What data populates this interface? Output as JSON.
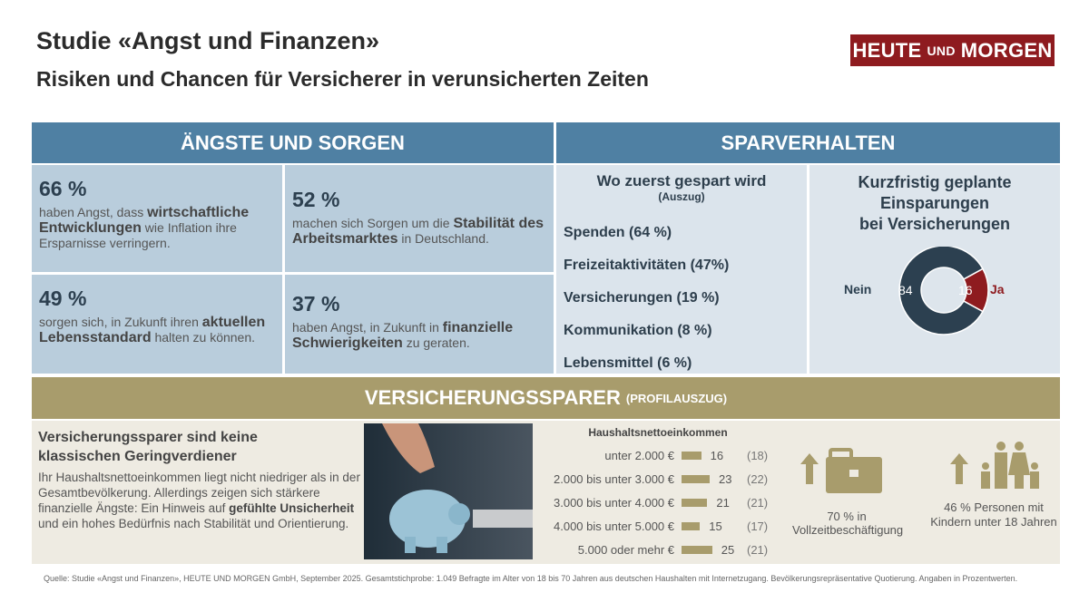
{
  "header": {
    "title": "Studie «Angst und Finanzen»",
    "subtitle": "Risiken und Chancen für Versicherer in verunsicherten Zeiten",
    "logo_main1": "HEUTE",
    "logo_small": "UND",
    "logo_main2": "MORGEN",
    "logo_color": "#8e1b1f"
  },
  "aengste": {
    "heading": "ÄNGSTE UND SORGEN",
    "cells": [
      {
        "pct": "66 %",
        "pre": "haben Angst, dass ",
        "bold": "wirtschaftliche Entwicklungen",
        "post": " wie Inflation ihre Ersparnisse verringern."
      },
      {
        "pct": "52 %",
        "pre": "machen sich Sorgen um die ",
        "bold": "Stabilität des Arbeitsmarktes",
        "post": " in Deutschland."
      },
      {
        "pct": "49 %",
        "pre": "sorgen sich, in Zukunft ihren ",
        "bold": "aktuellen Lebensstandard",
        "post": " halten zu können."
      },
      {
        "pct": "37 %",
        "pre": "haben Angst, in Zukunft in ",
        "bold": "finanzielle Schwierigkeiten",
        "post": " zu geraten."
      }
    ]
  },
  "spar": {
    "heading": "SPARVERHALTEN",
    "left_title": "Wo zuerst gespart wird",
    "left_sub": "(Auszug)",
    "items": [
      "Spenden (64 %)",
      "Freizeitaktivitäten (47%)",
      "Versicherungen (19 %)",
      "Kommunikation (8 %)",
      "Lebensmittel (6 %)"
    ],
    "right_title": [
      "Kurzfristig geplante",
      "Einsparungen",
      "bei Versicherungen"
    ],
    "donut": {
      "nein_label": "Nein",
      "nein_value": 84,
      "ja_label": "Ja",
      "ja_value": 16,
      "nein_color": "#2c4050",
      "ja_color": "#8e1b1f"
    }
  },
  "profil": {
    "heading": "VERSICHERUNGSSPARER",
    "heading_small": "(PROFILAUSZUG)",
    "lead": "Versicherungssparer sind keine klassischen Geringverdiener",
    "text_pre": "Ihr Haushaltsnettoeinkommen liegt nicht niedriger als in der Gesamtbevölkerung. Allerdings zeigen sich stärkere finanzielle Ängste: Ein Hinweis auf ",
    "text_bold": "gefühlte Unsicherheit",
    "text_post": " und ein hohes Bedürfnis nach Stabilität und Orientierung.",
    "photo": "piggy-bank-photo",
    "stat1": "70 % in Vollzeitbeschäftigung",
    "stat2": "46 % Personen mit Kindern unter 18 Jahren"
  },
  "chart_data": {
    "type": "bar",
    "title": "Haushaltsnettoeinkommen",
    "categories": [
      "unter 2.000 €",
      "2.000 bis unter 3.000 €",
      "3.000 bis unter 4.000 €",
      "4.000 bis unter 5.000 €",
      "5.000 oder mehr €"
    ],
    "values": [
      16,
      23,
      21,
      15,
      25
    ],
    "comparison": [
      "(18)",
      "(22)",
      "(21)",
      "(17)",
      "(21)"
    ],
    "bar_color": "#a89c6c"
  },
  "footer": "Quelle: Studie «Angst und Finanzen», HEUTE UND MORGEN GmbH, September 2025. Gesamtstichprobe: 1.049 Befragte im Alter von 18 bis 70 Jahren aus deutschen Haushalten mit Internetzugang. Bevölkerungsrepräsentative Quotierung. Angaben in Prozentwerten."
}
